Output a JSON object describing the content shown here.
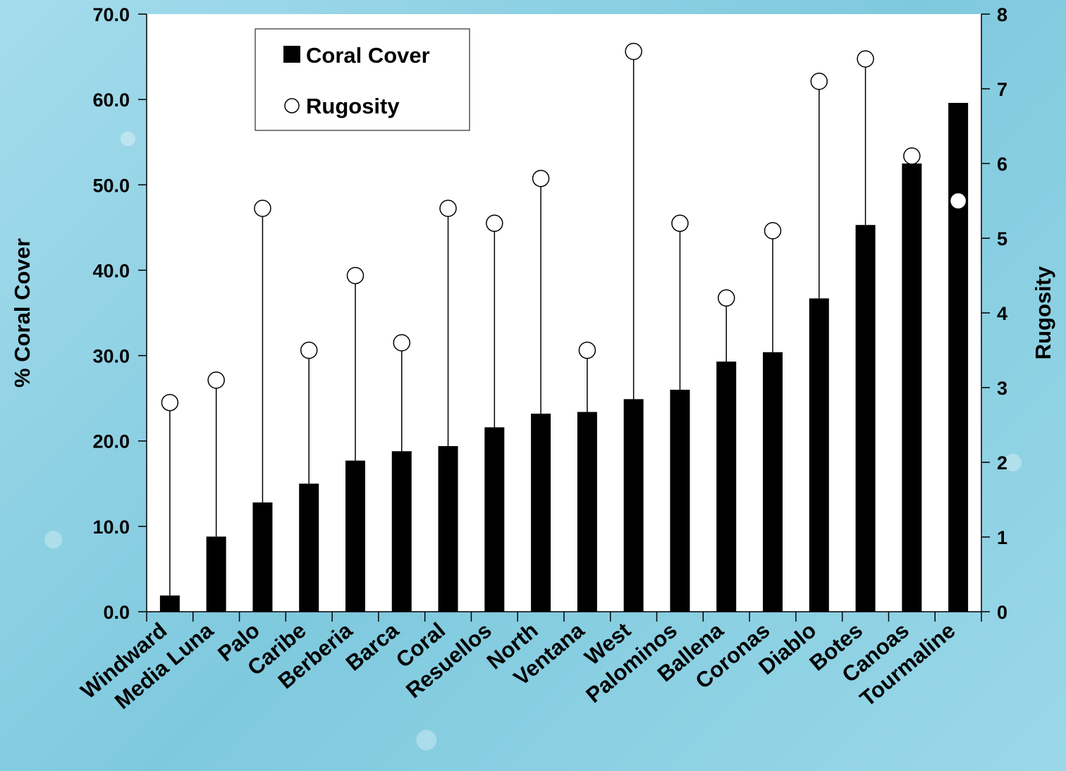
{
  "chart_data": {
    "type": "bar",
    "categories": [
      "Windward",
      "Media Luna",
      "Palo",
      "Caribe",
      "Berberia",
      "Barca",
      "Coral",
      "Resuellos",
      "North",
      "Ventana",
      "West",
      "Palominos",
      "Ballena",
      "Coronas",
      "Diablo",
      "Botes",
      "Canoas",
      "Tourmaline"
    ],
    "series": [
      {
        "name": "Coral Cover",
        "axis": "left",
        "type": "bar",
        "values": [
          1.9,
          8.8,
          12.8,
          15.0,
          17.7,
          18.8,
          19.4,
          21.6,
          23.2,
          23.4,
          24.9,
          26.0,
          29.3,
          30.4,
          36.7,
          45.3,
          52.5,
          59.6
        ]
      },
      {
        "name": "Rugosity",
        "axis": "right",
        "type": "scatter",
        "marker": "open-circle",
        "values": [
          2.8,
          3.1,
          5.4,
          3.5,
          4.5,
          3.6,
          5.4,
          5.2,
          5.8,
          3.5,
          7.5,
          5.2,
          4.2,
          5.1,
          7.1,
          7.4,
          6.1,
          5.5
        ]
      }
    ],
    "ylabel": "% Coral Cover",
    "y2label": "Rugosity",
    "ylim": [
      0,
      70
    ],
    "y2lim": [
      0,
      8
    ],
    "yticks": [
      "0.0",
      "10.0",
      "20.0",
      "30.0",
      "40.0",
      "50.0",
      "60.0",
      "70.0"
    ],
    "y2ticks": [
      "0",
      "1",
      "2",
      "3",
      "4",
      "5",
      "6",
      "7",
      "8"
    ],
    "legend": {
      "placement": "top-left",
      "items": [
        "Coral Cover",
        "Rugosity"
      ]
    },
    "grid": false,
    "colors": {
      "bar": "#000000",
      "plot_bg": "#ffffff",
      "marker_fill": "#ffffff"
    }
  }
}
